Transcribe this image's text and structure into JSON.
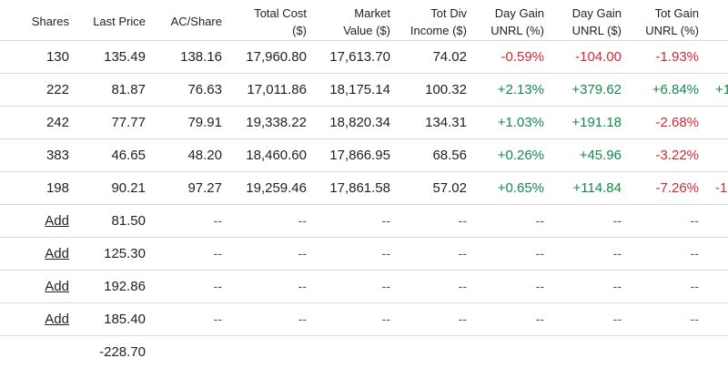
{
  "colors": {
    "positive": "#138a4c",
    "negative": "#d12936",
    "grid_line": "#d9d9d9"
  },
  "headers": {
    "shares": "Shares",
    "last_price": "Last Price",
    "ac_share": "AC/Share",
    "total_cost": "Total Cost\n($)",
    "market_value": "Market\nValue ($)",
    "tot_div": "Tot Div\nIncome ($)",
    "day_gain_pct": "Day Gain\nUNRL (%)",
    "day_gain_amt": "Day Gain\nUNRL ($)",
    "tot_gain_pct": "Tot Gain\nUNRL (%)"
  },
  "rows": [
    {
      "shares": "130",
      "last_price": "135.49",
      "ac_share": "138.16",
      "total_cost": "17,960.80",
      "market_value": "17,613.70",
      "tot_div": "74.02",
      "day_gain_pct": "-0.59%",
      "day_gain_amt": "-104.00",
      "tot_gain_pct": "-1.93%",
      "overflow": ""
    },
    {
      "shares": "222",
      "last_price": "81.87",
      "ac_share": "76.63",
      "total_cost": "17,011.86",
      "market_value": "18,175.14",
      "tot_div": "100.32",
      "day_gain_pct": "+2.13%",
      "day_gain_amt": "+379.62",
      "tot_gain_pct": "+6.84%",
      "overflow": "+1"
    },
    {
      "shares": "242",
      "last_price": "77.77",
      "ac_share": "79.91",
      "total_cost": "19,338.22",
      "market_value": "18,820.34",
      "tot_div": "134.31",
      "day_gain_pct": "+1.03%",
      "day_gain_amt": "+191.18",
      "tot_gain_pct": "-2.68%",
      "overflow": ""
    },
    {
      "shares": "383",
      "last_price": "46.65",
      "ac_share": "48.20",
      "total_cost": "18,460.60",
      "market_value": "17,866.95",
      "tot_div": "68.56",
      "day_gain_pct": "+0.26%",
      "day_gain_amt": "+45.96",
      "tot_gain_pct": "-3.22%",
      "overflow": ""
    },
    {
      "shares": "198",
      "last_price": "90.21",
      "ac_share": "97.27",
      "total_cost": "19,259.46",
      "market_value": "17,861.58",
      "tot_div": "57.02",
      "day_gain_pct": "+0.65%",
      "day_gain_amt": "+114.84",
      "tot_gain_pct": "-7.26%",
      "overflow": "-1"
    }
  ],
  "empty_rows": [
    {
      "add_label": "Add",
      "last_price": "81.50"
    },
    {
      "add_label": "Add",
      "last_price": "125.30"
    },
    {
      "add_label": "Add",
      "last_price": "192.86"
    },
    {
      "add_label": "Add",
      "last_price": "185.40"
    }
  ],
  "placeholder": "--",
  "totals": {
    "last_price": "-228.70"
  }
}
